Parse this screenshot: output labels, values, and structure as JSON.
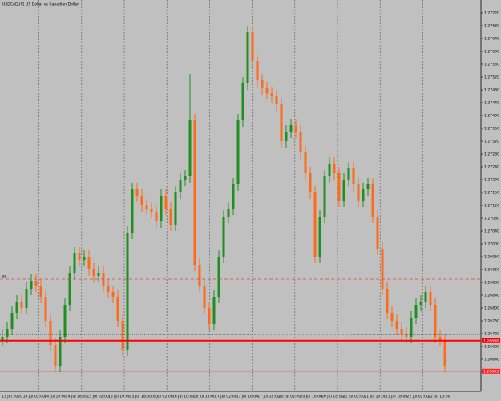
{
  "chart_data": {
    "type": "candlestick",
    "title": "USDCAD,H1  US Dollar vs Canadian Dollar",
    "bull_color": "#1f8f1f",
    "bear_color": "#ff6a1a",
    "background": "#c0c0c0",
    "ylim": [
      1.2656,
      1.2776
    ],
    "yticks": [
      {
        "value": 1.266,
        "label": "1.26600"
      },
      {
        "value": 1.2664,
        "label": "1.26640"
      },
      {
        "value": 1.2668,
        "label": "1.26680"
      },
      {
        "value": 1.2672,
        "label": "1.26720"
      },
      {
        "value": 1.2676,
        "label": "1.26760"
      },
      {
        "value": 1.268,
        "label": "1.26800"
      },
      {
        "value": 1.2684,
        "label": "1.26840"
      },
      {
        "value": 1.2688,
        "label": "1.26880"
      },
      {
        "value": 1.2692,
        "label": "1.26920"
      },
      {
        "value": 1.2696,
        "label": "1.26960"
      },
      {
        "value": 1.27,
        "label": "1.27000"
      },
      {
        "value": 1.2704,
        "label": "1.27040"
      },
      {
        "value": 1.2708,
        "label": "1.27080"
      },
      {
        "value": 1.2712,
        "label": "1.27120"
      },
      {
        "value": 1.2716,
        "label": "1.27160"
      },
      {
        "value": 1.272,
        "label": "1.27200"
      },
      {
        "value": 1.2724,
        "label": "1.27240"
      },
      {
        "value": 1.2728,
        "label": "1.27280"
      },
      {
        "value": 1.2732,
        "label": "1.27320"
      },
      {
        "value": 1.2736,
        "label": "1.27360"
      },
      {
        "value": 1.274,
        "label": "1.27400"
      },
      {
        "value": 1.2744,
        "label": "1.27440"
      },
      {
        "value": 1.2748,
        "label": "1.27480"
      },
      {
        "value": 1.2752,
        "label": "1.27520"
      },
      {
        "value": 1.2756,
        "label": "1.27560"
      },
      {
        "value": 1.276,
        "label": "1.27600"
      },
      {
        "value": 1.2764,
        "label": "1.27640"
      },
      {
        "value": 1.2768,
        "label": "1.27680"
      },
      {
        "value": 1.2772,
        "label": "1.27720"
      }
    ],
    "time_labels": [
      "13 Jul 2020",
      "14 Jul 02:00",
      "14 Jul 10:00",
      "14 Jul 18:00",
      "15 Jul 02:00",
      "15 Jul 10:00",
      "15 Jul 18:00",
      "16 Jul 02:00",
      "16 Jul 10:00",
      "16 Jul 18:00",
      "17 Jul 02:00",
      "17 Jul 10:00",
      "17 Jul 18:00",
      "20 Jul 02:00",
      "20 Jul 10:00",
      "20 Jul 18:00",
      "21 Jul 02:00",
      "21 Jul 10:00",
      "21 Jul 18:00",
      "22 Jul 02:00",
      "22 Jul 10:00"
    ],
    "grid": "vertical",
    "open": [
      1.267,
      1.2671,
      1.26735,
      1.26785,
      1.2682,
      1.268,
      1.2686,
      1.26885,
      1.2687,
      1.26835,
      1.2676,
      1.26685,
      1.2662,
      1.2671,
      1.2681,
      1.2691,
      1.2697,
      1.2695,
      1.2696,
      1.2692,
      1.269,
      1.2691,
      1.2687,
      1.2685,
      1.26835,
      1.2676,
      1.2667,
      1.27035,
      1.2717,
      1.2715,
      1.2712,
      1.2711,
      1.271,
      1.2707,
      1.2715,
      1.2711,
      1.2706,
      1.2716,
      1.272,
      1.2721,
      1.27385,
      1.26935,
      1.2687,
      1.268,
      1.2675,
      1.26835,
      1.2696,
      1.27085,
      1.2711,
      1.27185,
      1.27385,
      1.275,
      1.2766,
      1.2757,
      1.2751,
      1.27485,
      1.2747,
      1.2746,
      1.27435,
      1.2732,
      1.2735,
      1.2737,
      1.2735,
      1.27285,
      1.2722,
      1.2716,
      1.2696,
      1.27085,
      1.2721,
      1.2725,
      1.2722,
      1.27135,
      1.272,
      1.27235,
      1.27185,
      1.27135,
      1.2717,
      1.27185,
      1.27085,
      1.26985,
      1.2686,
      1.26785,
      1.2676,
      1.26735,
      1.2672,
      1.2671,
      1.2677,
      1.2681,
      1.2682,
      1.2685,
      1.2681,
      1.2671,
      1.267
    ],
    "high": [
      1.2673,
      1.26755,
      1.26805,
      1.2684,
      1.2684,
      1.2688,
      1.26905,
      1.26905,
      1.2689,
      1.26855,
      1.2678,
      1.26705,
      1.2673,
      1.2683,
      1.2693,
      1.2699,
      1.2699,
      1.2698,
      1.2698,
      1.2694,
      1.2693,
      1.2693,
      1.2689,
      1.2687,
      1.26855,
      1.2678,
      1.27055,
      1.2719,
      1.2719,
      1.2717,
      1.2714,
      1.2713,
      1.2712,
      1.2717,
      1.2717,
      1.2713,
      1.2718,
      1.2722,
      1.2723,
      1.2753,
      1.27405,
      1.26955,
      1.2689,
      1.2682,
      1.26855,
      1.2698,
      1.27105,
      1.2713,
      1.27205,
      1.27405,
      1.2752,
      1.2768,
      1.2768,
      1.2759,
      1.2753,
      1.27505,
      1.2749,
      1.2748,
      1.27455,
      1.2737,
      1.2739,
      1.2739,
      1.2737,
      1.27305,
      1.2724,
      1.2718,
      1.27105,
      1.2723,
      1.2727,
      1.2727,
      1.2724,
      1.2722,
      1.27255,
      1.27255,
      1.27205,
      1.2719,
      1.27205,
      1.27205,
      1.27105,
      1.27005,
      1.2688,
      1.26805,
      1.2678,
      1.26755,
      1.2674,
      1.2679,
      1.2683,
      1.2684,
      1.2687,
      1.2687,
      1.2683,
      1.2673,
      1.2672
    ],
    "low": [
      1.2668,
      1.2669,
      1.26715,
      1.26765,
      1.2678,
      1.2678,
      1.2684,
      1.2685,
      1.26815,
      1.2674,
      1.26665,
      1.266,
      1.266,
      1.2669,
      1.2679,
      1.2689,
      1.2693,
      1.2693,
      1.269,
      1.2688,
      1.2688,
      1.2685,
      1.2683,
      1.26815,
      1.2674,
      1.2665,
      1.2665,
      1.27015,
      1.2713,
      1.271,
      1.2709,
      1.2708,
      1.2705,
      1.2705,
      1.2709,
      1.2704,
      1.2704,
      1.2714,
      1.2718,
      1.2719,
      1.26915,
      1.2685,
      1.2678,
      1.2673,
      1.2673,
      1.26815,
      1.2694,
      1.27065,
      1.2709,
      1.27165,
      1.27365,
      1.2748,
      1.2755,
      1.2749,
      1.27465,
      1.2745,
      1.2744,
      1.27415,
      1.273,
      1.273,
      1.2733,
      1.2733,
      1.27265,
      1.272,
      1.2714,
      1.2694,
      1.2694,
      1.27065,
      1.2719,
      1.272,
      1.27115,
      1.27115,
      1.2718,
      1.27165,
      1.27115,
      1.27115,
      1.2715,
      1.27065,
      1.26965,
      1.2684,
      1.26765,
      1.2674,
      1.26715,
      1.267,
      1.2669,
      1.2669,
      1.2675,
      1.2679,
      1.268,
      1.2679,
      1.2669,
      1.2668,
      1.266
    ],
    "close": [
      1.2671,
      1.26735,
      1.26785,
      1.2682,
      1.268,
      1.2686,
      1.26885,
      1.2687,
      1.26835,
      1.2676,
      1.26685,
      1.2662,
      1.2671,
      1.2681,
      1.2691,
      1.2697,
      1.2695,
      1.2696,
      1.2692,
      1.269,
      1.2691,
      1.2687,
      1.2685,
      1.26835,
      1.2676,
      1.2667,
      1.27035,
      1.2717,
      1.2715,
      1.2712,
      1.2711,
      1.271,
      1.2707,
      1.2715,
      1.2711,
      1.2706,
      1.2716,
      1.272,
      1.2721,
      1.27385,
      1.26935,
      1.2687,
      1.268,
      1.2675,
      1.26835,
      1.2696,
      1.27085,
      1.2711,
      1.27185,
      1.27385,
      1.275,
      1.2766,
      1.2757,
      1.2751,
      1.27485,
      1.2747,
      1.2746,
      1.27435,
      1.2732,
      1.2735,
      1.2737,
      1.2735,
      1.27285,
      1.2722,
      1.2716,
      1.2696,
      1.27085,
      1.2721,
      1.2725,
      1.2722,
      1.27135,
      1.272,
      1.27235,
      1.27185,
      1.27135,
      1.2717,
      1.27185,
      1.27085,
      1.26985,
      1.2686,
      1.26785,
      1.2676,
      1.26735,
      1.2672,
      1.2671,
      1.2677,
      1.2681,
      1.2682,
      1.2685,
      1.2681,
      1.2671,
      1.267,
      1.2662
    ],
    "levels": [
      {
        "value": 1.2689,
        "color": "#e8403a",
        "style": "dashed",
        "text": "SL"
      },
      {
        "value": 1.26717,
        "color": "#444444",
        "style": "dotted"
      },
      {
        "value": 1.26698,
        "color": "#ff0000",
        "style": "solid",
        "label": "1.26698"
      },
      {
        "value": 1.26603,
        "color": "#ff2020",
        "style": "thin",
        "label": "1.26603"
      }
    ]
  }
}
